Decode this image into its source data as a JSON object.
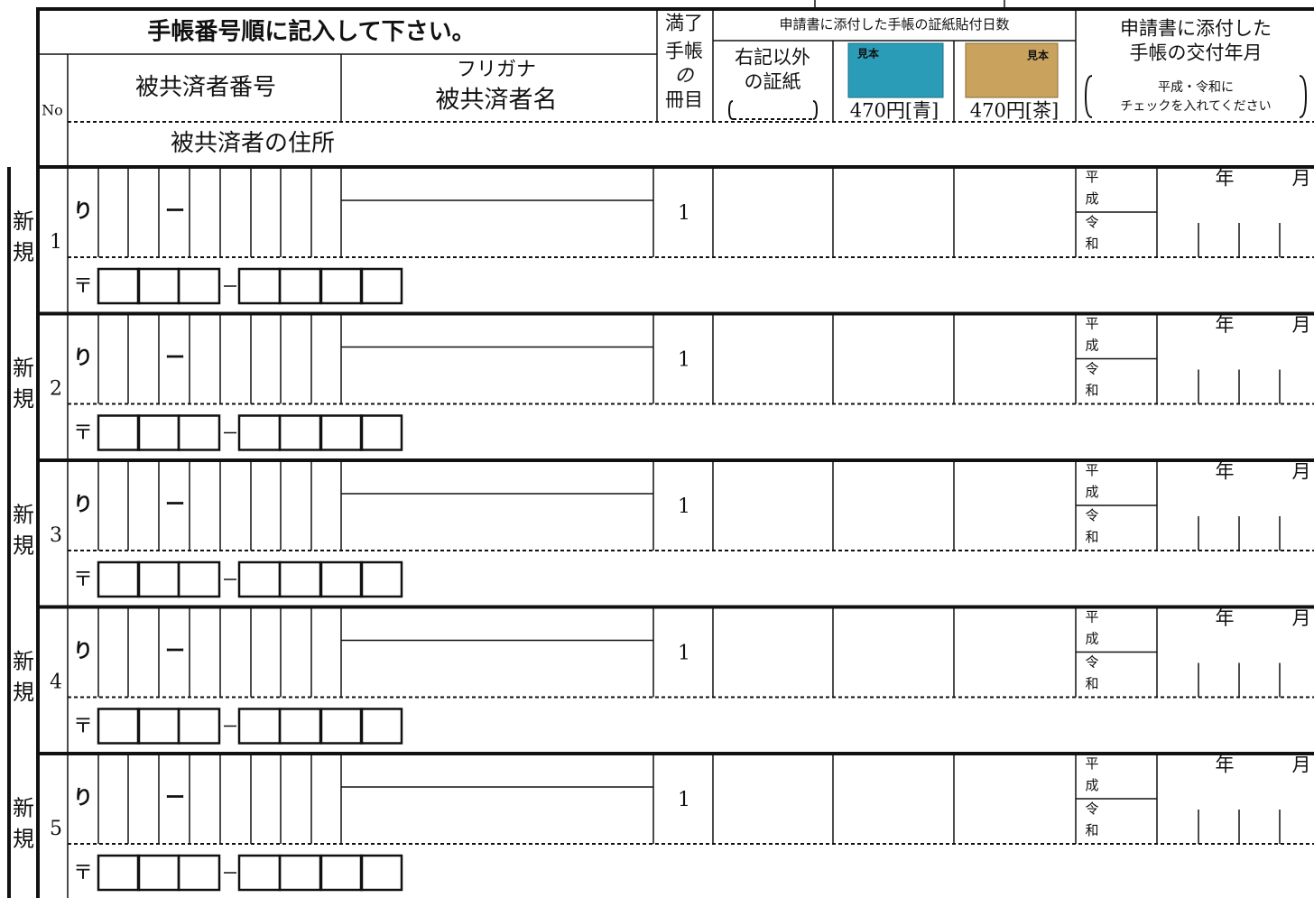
{
  "header": {
    "instruction": "手帳番号順に記入して下さい。",
    "no": "No",
    "member_number": "被共済者番号",
    "furigana": "フリガナ",
    "member_name": "被共済者名",
    "address": "被共済者の住所",
    "book_count": [
      "満了",
      "手帳",
      "の",
      "冊目"
    ],
    "stamp_days": "申請書に添付した手帳の証紙貼付日数",
    "other_stamp": [
      "右記以外",
      "の証紙"
    ],
    "blue_stamp": {
      "sample": "見本",
      "price": "470円[青]"
    },
    "brown_stamp": {
      "sample": "見本",
      "price": "470円[茶]"
    },
    "issue_date": [
      "申請書に添付した",
      "手帳の交付年月"
    ],
    "issue_note": [
      "平成・令和に",
      "チェックを入れてください"
    ]
  },
  "rows": [
    {
      "label": [
        "新",
        "規"
      ],
      "no": 1,
      "prefix": "り",
      "dash": "ー",
      "book": 1,
      "era": [
        "平",
        "成",
        "令",
        "和"
      ],
      "year": "年",
      "month": "月",
      "postal": "〒"
    },
    {
      "label": [
        "新",
        "規"
      ],
      "no": 2,
      "prefix": "り",
      "dash": "ー",
      "book": 1,
      "era": [
        "平",
        "成",
        "令",
        "和"
      ],
      "year": "年",
      "month": "月",
      "postal": "〒"
    },
    {
      "label": [
        "新",
        "規"
      ],
      "no": 3,
      "prefix": "り",
      "dash": "ー",
      "book": 1,
      "era": [
        "平",
        "成",
        "令",
        "和"
      ],
      "year": "年",
      "month": "月",
      "postal": "〒"
    },
    {
      "label": [
        "新",
        "規"
      ],
      "no": 4,
      "prefix": "り",
      "dash": "ー",
      "book": 1,
      "era": [
        "平",
        "成",
        "令",
        "和"
      ],
      "year": "年",
      "month": "月",
      "postal": "〒"
    },
    {
      "label": [
        "新",
        "規"
      ],
      "no": 5,
      "prefix": "り",
      "dash": "ー",
      "book": 1,
      "era": [
        "平",
        "成",
        "令",
        "和"
      ],
      "year": "年",
      "month": "月",
      "postal": "〒"
    }
  ]
}
